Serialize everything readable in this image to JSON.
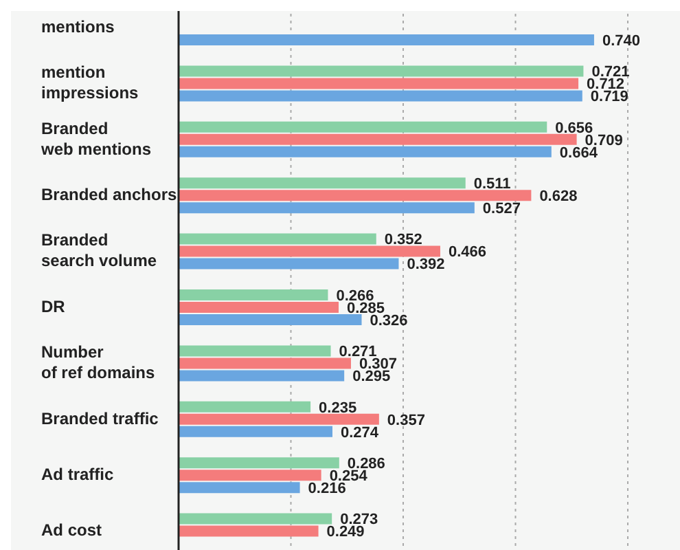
{
  "chart_data": {
    "type": "bar",
    "orientation": "horizontal",
    "categories": [
      "mentions",
      "mention\nimpressions",
      "Branded\nweb mentions",
      "Branded anchors",
      "Branded\nsearch volume",
      "DR",
      "Number\nof ref domains",
      "Branded traffic",
      "Ad traffic",
      "Ad cost"
    ],
    "series": [
      {
        "color": "#88d1a5",
        "values": [
          null,
          0.721,
          0.656,
          0.511,
          0.352,
          0.266,
          0.271,
          0.235,
          0.286,
          0.273
        ],
        "value_labels": [
          null,
          "0.721",
          "0.656",
          "0.511",
          "0.352",
          "0.266",
          "0.271",
          "0.235",
          "0.286",
          "0.273"
        ]
      },
      {
        "color": "#f47c7c",
        "values": [
          null,
          0.712,
          0.709,
          0.628,
          0.466,
          0.285,
          0.307,
          0.357,
          0.254,
          0.249
        ],
        "value_labels": [
          null,
          "0.712",
          "0.709",
          "0.628",
          "0.466",
          "0.285",
          "0.307",
          "0.357",
          "0.254",
          "0.249"
        ]
      },
      {
        "color": "#6aa6e0",
        "values": [
          0.74,
          0.719,
          0.664,
          0.527,
          0.392,
          0.326,
          0.295,
          0.274,
          0.216,
          null
        ],
        "value_labels": [
          "0.740",
          "0.719",
          "0.664",
          "0.527",
          "0.392",
          "0.326",
          "0.295",
          "0.274",
          "0.216",
          null
        ]
      }
    ],
    "xlim": [
      0,
      0.8
    ],
    "xticks": [
      {
        "value": 0.2,
        "label": null
      },
      {
        "value": 0.4,
        "label": null
      },
      {
        "value": 0.6,
        "label": null
      },
      {
        "value": 0.8,
        "label": null
      }
    ],
    "tick_labels": "y",
    "grid": "x",
    "legend": false
  }
}
